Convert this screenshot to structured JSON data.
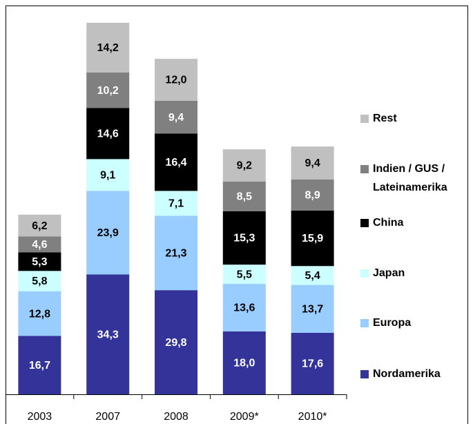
{
  "chart_data": {
    "type": "stacked_bar",
    "categories": [
      "2003",
      "2007",
      "2008",
      "2009*",
      "2010*"
    ],
    "series": [
      {
        "name": "Nordamerika",
        "color": "#333399",
        "values": [
          16.7,
          34.3,
          29.8,
          18.0,
          17.6
        ],
        "value_labels": [
          "16,7",
          "34,3",
          "29,8",
          "18,0",
          "17,6"
        ]
      },
      {
        "name": "Europa",
        "color": "#99ccff",
        "values": [
          12.8,
          23.9,
          21.3,
          13.6,
          13.7
        ],
        "value_labels": [
          "12,8",
          "23,9",
          "21,3",
          "13,6",
          "13,7"
        ]
      },
      {
        "name": "Japan",
        "color": "#ccffff",
        "values": [
          5.8,
          9.1,
          7.1,
          5.5,
          5.4
        ],
        "value_labels": [
          "5,8",
          "9,1",
          "7,1",
          "5,5",
          "5,4"
        ]
      },
      {
        "name": "China",
        "color": "#000000",
        "values": [
          5.3,
          14.6,
          16.4,
          15.3,
          15.9
        ],
        "value_labels": [
          "5,3",
          "14,6",
          "16,4",
          "15,3",
          "15,9"
        ]
      },
      {
        "name": "Indien / GUS / Lateinamerika",
        "color": "#808080",
        "values": [
          4.6,
          10.2,
          9.4,
          8.5,
          8.9
        ],
        "value_labels": [
          "4,6",
          "10,2",
          "9,4",
          "8,5",
          "8,9"
        ]
      },
      {
        "name": "Rest",
        "color": "#c0c0c0",
        "values": [
          6.2,
          14.2,
          12.0,
          9.2,
          9.4
        ],
        "value_labels": [
          "6,2",
          "14,2",
          "12,0",
          "9,2",
          "9,4"
        ]
      }
    ]
  }
}
